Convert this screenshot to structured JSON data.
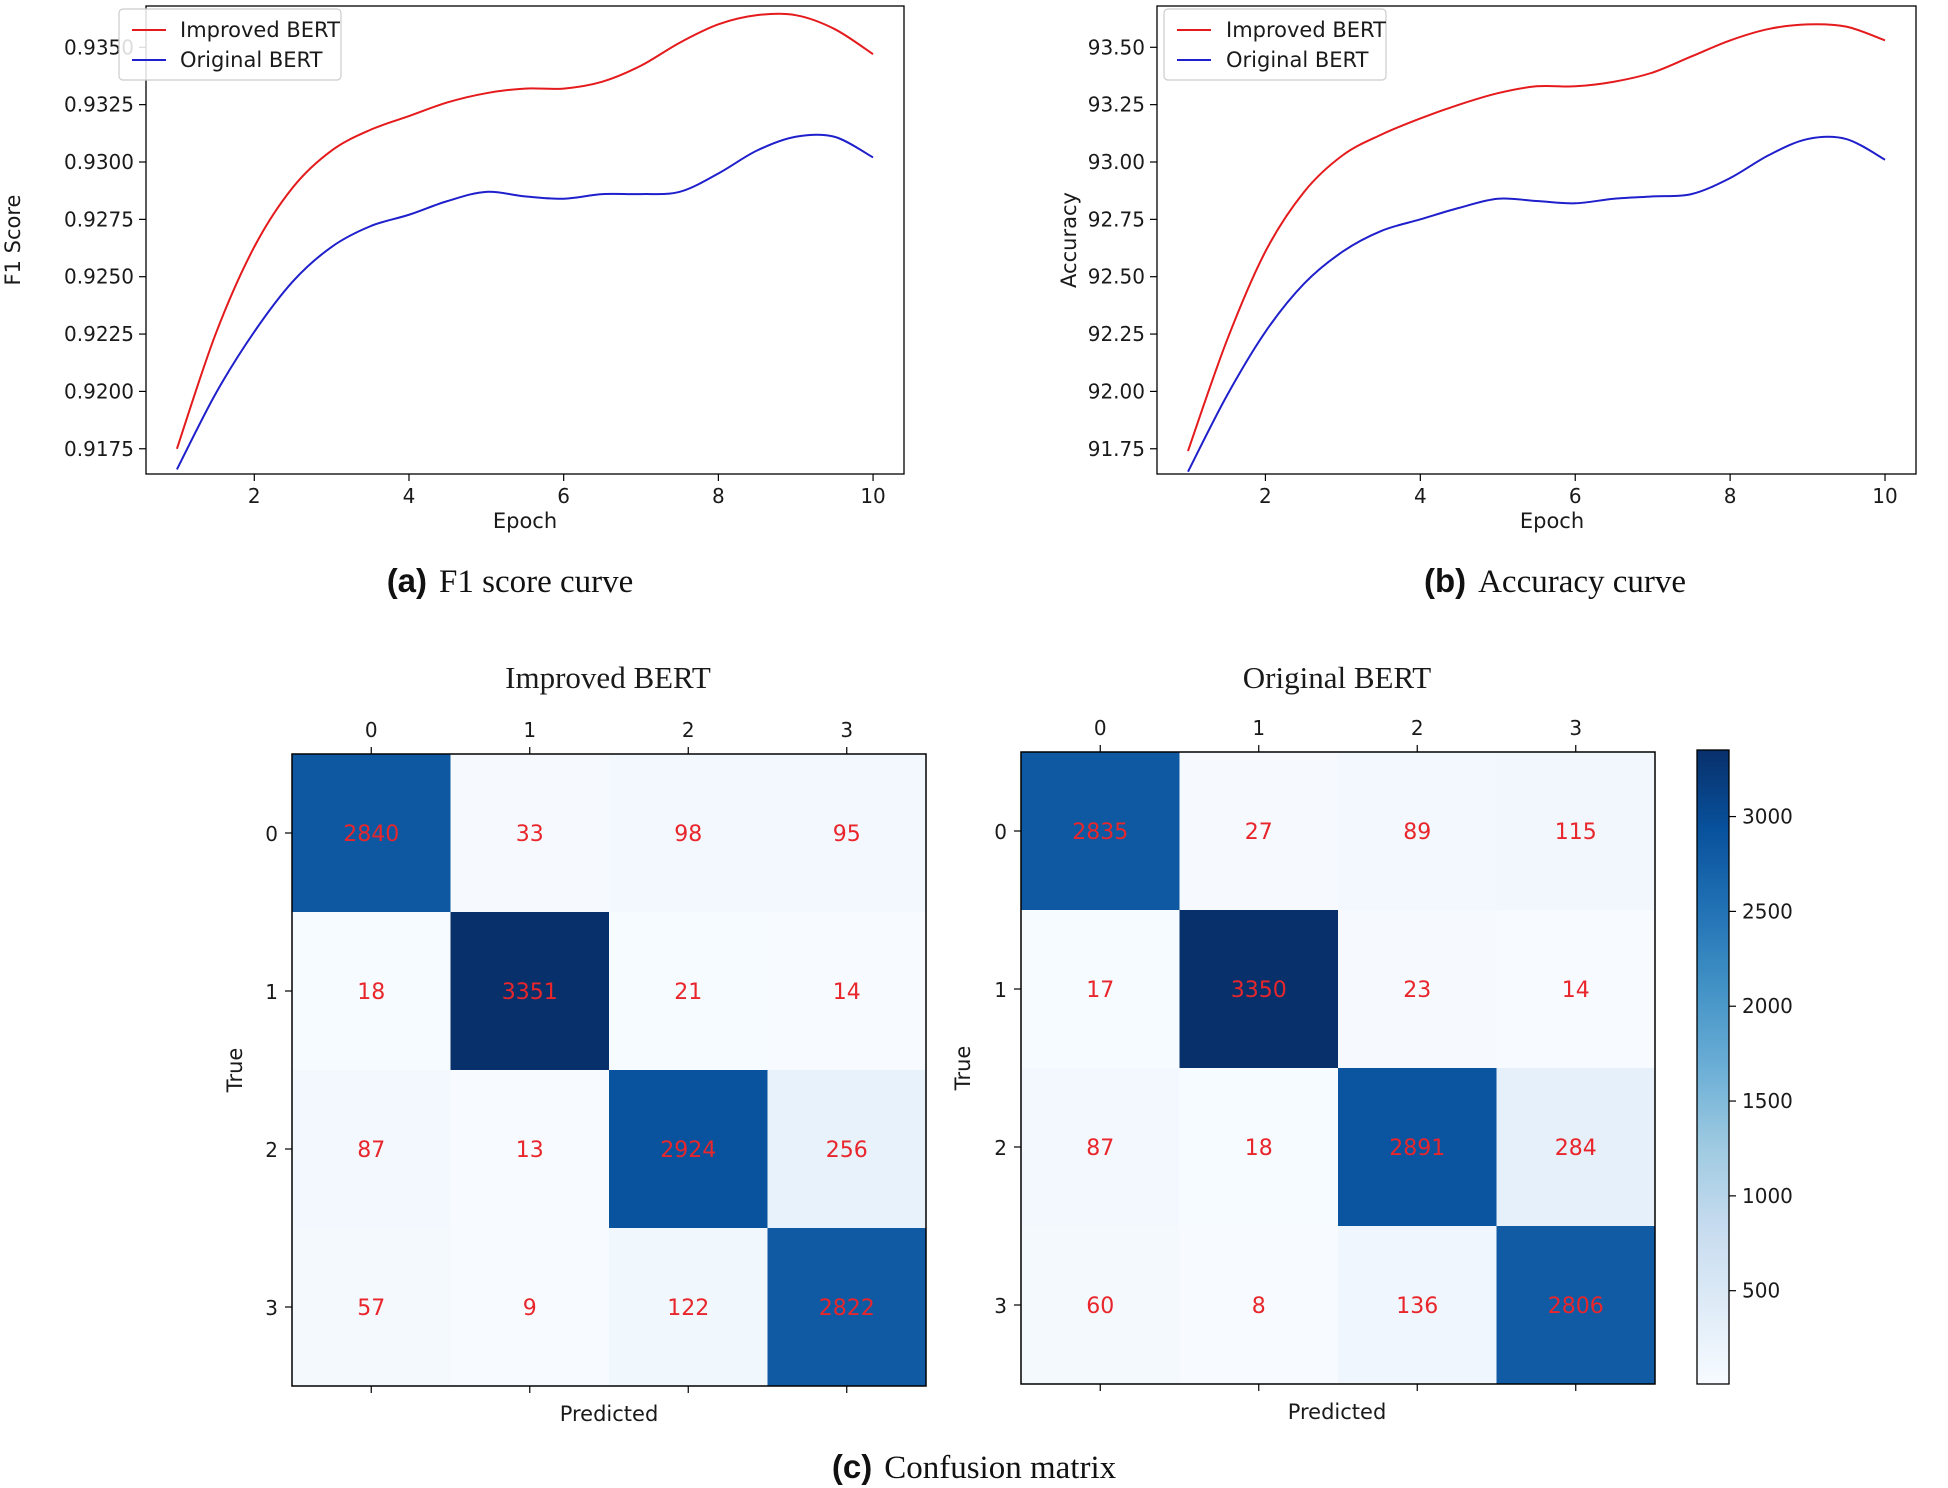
{
  "chart_data": [
    {
      "id": "f1",
      "type": "line",
      "caption_label": "(a)",
      "caption_text": "F1 score curve",
      "xlabel": "Epoch",
      "ylabel": "F1 Score",
      "xlim": [
        0.6,
        10.4
      ],
      "ylim": [
        0.9164,
        0.9368
      ],
      "xticks": [
        2,
        4,
        6,
        8,
        10
      ],
      "xtick_labels": [
        "2",
        "4",
        "6",
        "8",
        "10"
      ],
      "yticks": [
        0.9175,
        0.92,
        0.9225,
        0.925,
        0.9275,
        0.93,
        0.9325,
        0.935
      ],
      "ytick_labels": [
        "0.9175",
        "0.9200",
        "0.9225",
        "0.9250",
        "0.9275",
        "0.9300",
        "0.9325",
        "0.9350"
      ],
      "legend_position": "top-left",
      "series": [
        {
          "name": "Improved BERT",
          "color": "#e41a1c",
          "x": [
            1,
            1.5,
            2,
            2.5,
            3,
            3.5,
            4,
            4.5,
            5,
            5.5,
            6,
            6.5,
            7,
            7.5,
            8,
            8.5,
            9,
            9.5,
            10
          ],
          "values": [
            0.9175,
            0.9225,
            0.9263,
            0.9289,
            0.9305,
            0.9314,
            0.932,
            0.9326,
            0.933,
            0.9332,
            0.9332,
            0.9335,
            0.9342,
            0.9352,
            0.936,
            0.9364,
            0.9364,
            0.9358,
            0.9347
          ]
        },
        {
          "name": "Original BERT",
          "color": "#1f1fcc",
          "x": [
            1,
            1.5,
            2,
            2.5,
            3,
            3.5,
            4,
            4.5,
            5,
            5.5,
            6,
            6.5,
            7,
            7.5,
            8,
            8.5,
            9,
            9.5,
            10
          ],
          "values": [
            0.9166,
            0.9199,
            0.9226,
            0.9248,
            0.9263,
            0.9272,
            0.9277,
            0.9283,
            0.9287,
            0.9285,
            0.9284,
            0.9286,
            0.9286,
            0.9287,
            0.9295,
            0.9305,
            0.9311,
            0.9311,
            0.9302
          ]
        }
      ]
    },
    {
      "id": "acc",
      "type": "line",
      "caption_label": "(b)",
      "caption_text": "Accuracy curve",
      "xlabel": "Epoch",
      "ylabel": "Accuracy",
      "xlim": [
        0.6,
        10.4
      ],
      "ylim": [
        91.64,
        93.68
      ],
      "xticks": [
        2,
        4,
        6,
        8,
        10
      ],
      "xtick_labels": [
        "2",
        "4",
        "6",
        "8",
        "10"
      ],
      "yticks": [
        91.75,
        92.0,
        92.25,
        92.5,
        92.75,
        93.0,
        93.25,
        93.5
      ],
      "ytick_labels": [
        "91.75",
        "92.00",
        "92.25",
        "92.50",
        "92.75",
        "93.00",
        "93.25",
        "93.50"
      ],
      "legend_position": "top-left",
      "series": [
        {
          "name": "Improved BERT",
          "color": "#e41a1c",
          "x": [
            1,
            1.5,
            2,
            2.5,
            3,
            3.5,
            4,
            4.5,
            5,
            5.5,
            6,
            6.5,
            7,
            7.5,
            8,
            8.5,
            9,
            9.5,
            10
          ],
          "values": [
            91.74,
            92.22,
            92.61,
            92.87,
            93.03,
            93.12,
            93.19,
            93.25,
            93.3,
            93.33,
            93.33,
            93.35,
            93.39,
            93.46,
            93.53,
            93.58,
            93.6,
            93.59,
            93.53
          ]
        },
        {
          "name": "Original BERT",
          "color": "#1f1fcc",
          "x": [
            1,
            1.5,
            2,
            2.5,
            3,
            3.5,
            4,
            4.5,
            5,
            5.5,
            6,
            6.5,
            7,
            7.5,
            8,
            8.5,
            9,
            9.5,
            10
          ],
          "values": [
            91.65,
            91.98,
            92.26,
            92.47,
            92.61,
            92.7,
            92.75,
            92.8,
            92.84,
            92.83,
            92.82,
            92.84,
            92.85,
            92.86,
            92.93,
            93.03,
            93.1,
            93.1,
            93.01
          ]
        }
      ]
    },
    {
      "id": "cm-improved",
      "type": "heatmap",
      "title": "Improved BERT",
      "xlabel": "Predicted",
      "ylabel": "True",
      "x_categories": [
        "0",
        "1",
        "2",
        "3"
      ],
      "y_categories": [
        "0",
        "1",
        "2",
        "3"
      ],
      "values": [
        [
          2840,
          33,
          98,
          95
        ],
        [
          18,
          3351,
          21,
          14
        ],
        [
          87,
          13,
          2924,
          256
        ],
        [
          57,
          9,
          122,
          2822
        ]
      ]
    },
    {
      "id": "cm-original",
      "type": "heatmap",
      "title": "Original BERT",
      "xlabel": "Predicted",
      "ylabel": "True",
      "x_categories": [
        "0",
        "1",
        "2",
        "3"
      ],
      "y_categories": [
        "0",
        "1",
        "2",
        "3"
      ],
      "values": [
        [
          2835,
          27,
          89,
          115
        ],
        [
          17,
          3350,
          23,
          14
        ],
        [
          87,
          18,
          2891,
          284
        ],
        [
          60,
          8,
          136,
          2806
        ]
      ],
      "colorbar_range": [
        8,
        3351
      ],
      "colorbar_ticks": [
        500,
        1000,
        1500,
        2000,
        2500,
        3000
      ],
      "colorbar_tick_labels": [
        "500",
        "1000",
        "1500",
        "2000",
        "2500",
        "3000"
      ]
    }
  ],
  "figure_caption": {
    "label": "(c)",
    "text": "Confusion matrix"
  }
}
